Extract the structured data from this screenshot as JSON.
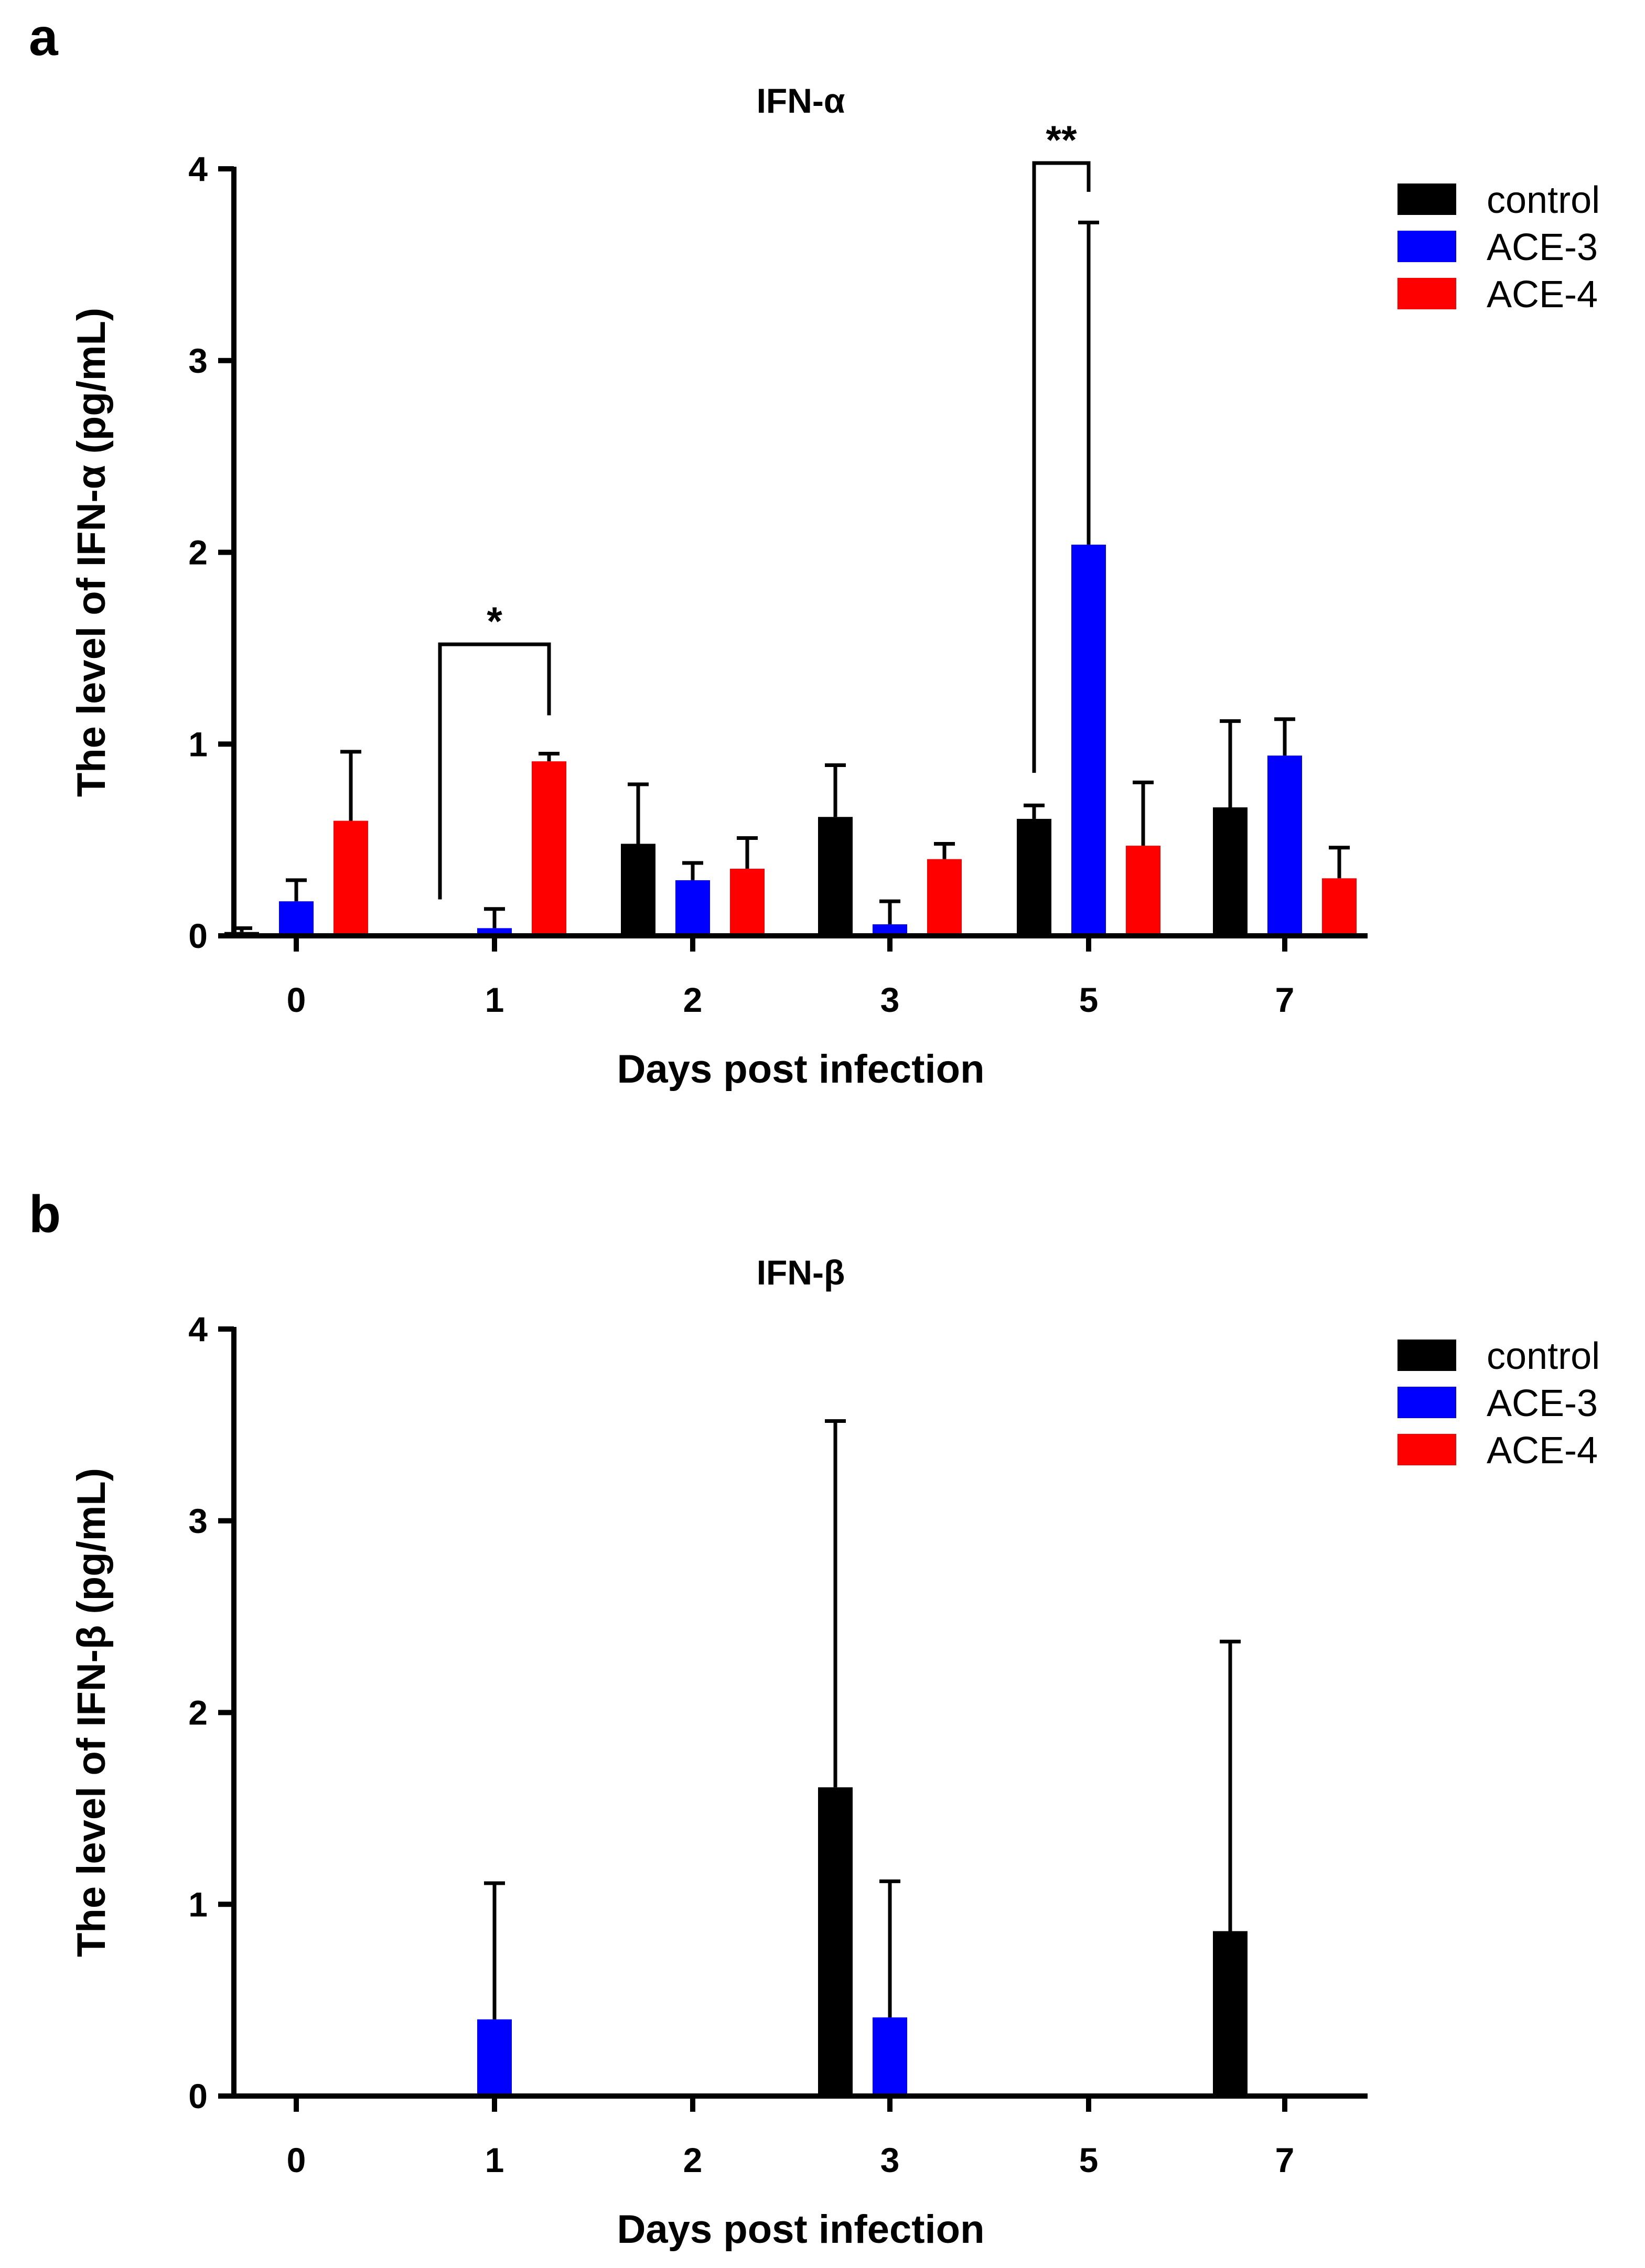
{
  "chart_data": [
    {
      "panel": "a",
      "type": "bar",
      "title": "IFN-α",
      "xlabel": "Days post infection",
      "ylabel": "The level of IFN-α (pg/mL)",
      "categories": [
        "0",
        "1",
        "2",
        "3",
        "5",
        "7"
      ],
      "ylim": [
        0,
        4
      ],
      "yticks": [
        "0",
        "1",
        "2",
        "3",
        "4"
      ],
      "legend_position": "top-right",
      "series": [
        {
          "name": "control",
          "color": "#000000",
          "values": [
            0.02,
            0.0,
            0.48,
            0.62,
            0.61,
            0.67
          ],
          "errors": [
            0.02,
            0.0,
            0.31,
            0.27,
            0.07,
            0.45
          ]
        },
        {
          "name": "ACE-3",
          "color": "#0000ff",
          "values": [
            0.18,
            0.04,
            0.29,
            0.06,
            2.04,
            0.94
          ],
          "errors": [
            0.11,
            0.1,
            0.09,
            0.12,
            1.68,
            0.19
          ]
        },
        {
          "name": "ACE-4",
          "color": "#ff0000",
          "values": [
            0.6,
            0.91,
            0.35,
            0.4,
            0.47,
            0.3
          ],
          "errors": [
            0.36,
            0.04,
            0.16,
            0.08,
            0.33,
            0.16
          ]
        }
      ],
      "annotations": [
        {
          "label": "*",
          "category": "1",
          "from_series": "control",
          "to_series": "ACE-4",
          "y_level": 1.52,
          "left_end": 0.19,
          "right_end": 1.15
        },
        {
          "label": "**",
          "category": "5",
          "from_series": "control",
          "to_series": "ACE-3",
          "y_level": 4.03,
          "left_end": 0.85,
          "right_end": 3.88
        }
      ]
    },
    {
      "panel": "b",
      "type": "bar",
      "title": "IFN-β",
      "xlabel": "Days post infection",
      "ylabel": "The level of IFN-β (pg/mL)",
      "categories": [
        "0",
        "1",
        "2",
        "3",
        "5",
        "7"
      ],
      "ylim": [
        0,
        4
      ],
      "yticks": [
        "0",
        "1",
        "2",
        "3",
        "4"
      ],
      "legend_position": "top-right",
      "series": [
        {
          "name": "control",
          "color": "#000000",
          "values": [
            0,
            0,
            0,
            1.61,
            0,
            0.86
          ],
          "errors": [
            0,
            0,
            0,
            1.91,
            0,
            1.51
          ]
        },
        {
          "name": "ACE-3",
          "color": "#0000ff",
          "values": [
            0,
            0.4,
            0,
            0.41,
            0,
            0
          ],
          "errors": [
            0,
            0.71,
            0,
            0.71,
            0,
            0
          ]
        },
        {
          "name": "ACE-4",
          "color": "#ff0000",
          "values": [
            0,
            0,
            0,
            0,
            0,
            0
          ],
          "errors": [
            0,
            0,
            0,
            0,
            0,
            0
          ]
        }
      ],
      "annotations": []
    }
  ]
}
